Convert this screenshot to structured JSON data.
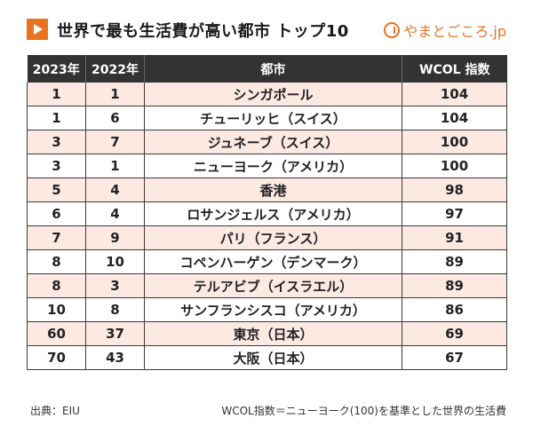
{
  "header": {
    "title": "世界で最も生活費が高い都市 トップ10",
    "brand": "やまとごころ.jp",
    "play_icon": "play-icon",
    "accent_color": "#e8731f"
  },
  "table": {
    "columns": [
      "2023年",
      "2022年",
      "都市",
      "WCOL 指数"
    ],
    "rows": [
      [
        "1",
        "1",
        "シンガポール",
        "104"
      ],
      [
        "1",
        "6",
        "チューリッヒ（スイス）",
        "104"
      ],
      [
        "3",
        "7",
        "ジュネーブ（スイス）",
        "100"
      ],
      [
        "3",
        "1",
        "ニューヨーク（アメリカ）",
        "100"
      ],
      [
        "5",
        "4",
        "香港",
        "98"
      ],
      [
        "6",
        "4",
        "ロサンジェルス（アメリカ）",
        "97"
      ],
      [
        "7",
        "9",
        "パリ（フランス）",
        "91"
      ],
      [
        "8",
        "10",
        "コペンハーゲン（デンマーク）",
        "89"
      ],
      [
        "8",
        "3",
        "テルアビブ（イスラエル）",
        "89"
      ],
      [
        "10",
        "8",
        "サンフランシスコ（アメリカ）",
        "86"
      ],
      [
        "60",
        "37",
        "東京（日本）",
        "69"
      ],
      [
        "70",
        "43",
        "大阪（日本）",
        "67"
      ]
    ],
    "stripe_color": "#fbe9e2",
    "header_color": "#333333"
  },
  "footer": {
    "source": "出典：EIU",
    "note": "WCOL指数＝ニューヨーク(100)を基準とした世界の生活費"
  }
}
